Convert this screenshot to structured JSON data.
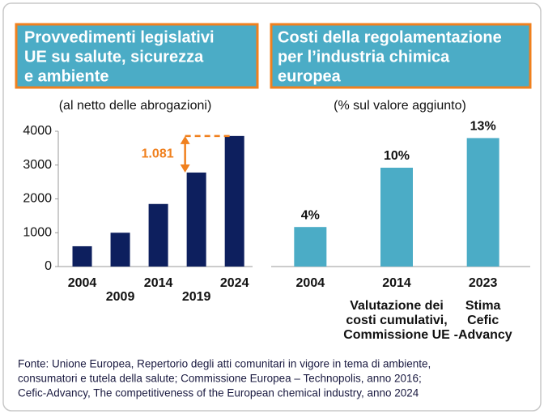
{
  "chart_data": [
    {
      "type": "bar",
      "title": [
        "Provvedimenti legislativi",
        "UE su salute, sicurezza",
        "e ambiente"
      ],
      "subtitle": "(al netto delle abrogazioni)",
      "categories": [
        "2004",
        "2009",
        "2014",
        "2019",
        "2024"
      ],
      "values": [
        600,
        1000,
        1850,
        2779,
        3860
      ],
      "color": "#0d1f5e",
      "ylim": [
        0,
        4000
      ],
      "yticks": [
        0,
        1000,
        2000,
        3000,
        4000
      ],
      "annotation": "1.081",
      "annotation_color": "#f0801e"
    },
    {
      "type": "bar",
      "title": [
        "Costi della regolamentazione",
        "per l’industria chimica",
        "europea"
      ],
      "subtitle": "(% sul valore aggiunto)",
      "categories": [
        "2004",
        "2014",
        "2023"
      ],
      "category_notes": [
        null,
        [
          "Valutazione dei",
          "costi cumulativi,",
          "Commissione UE"
        ],
        [
          "Stima",
          "Cefic",
          "-Advancy"
        ]
      ],
      "values": [
        4,
        10,
        13
      ],
      "value_labels": [
        "4%",
        "10%",
        "13%"
      ],
      "color": "#4bacc6"
    }
  ],
  "source": [
    "Fonte: Unione Europea, Repertorio degli atti comunitari in vigore in tema di ambiente,",
    "consumatori e tutela della salute; Commissione Europea – Technopolis, anno 2016;",
    "Cefic-Advancy, The competitiveness of the European chemical industry, anno 2024"
  ]
}
